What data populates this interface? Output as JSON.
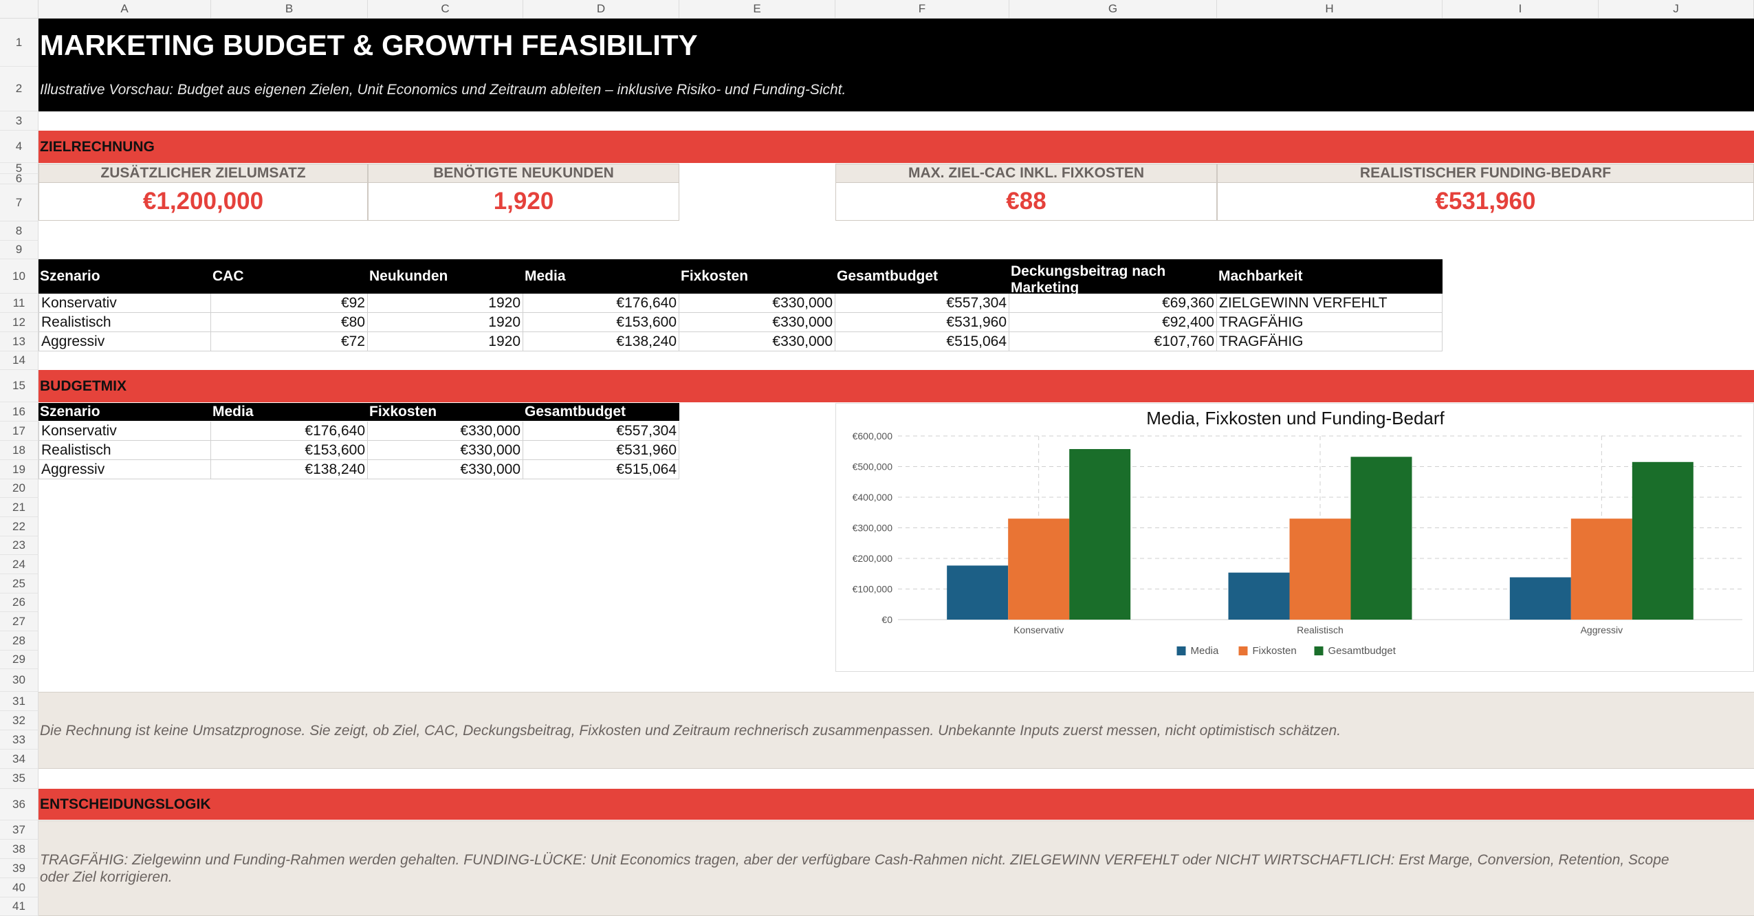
{
  "columns": [
    "A",
    "B",
    "C",
    "D",
    "E",
    "F",
    "G",
    "H",
    "I",
    "J"
  ],
  "rows": [
    "1",
    "2",
    "3",
    "4",
    "5",
    "6",
    "7",
    "8",
    "9",
    "10",
    "11",
    "12",
    "13",
    "14",
    "15",
    "16",
    "17",
    "18",
    "19",
    "20",
    "21",
    "22",
    "23",
    "24",
    "25",
    "26",
    "27",
    "28",
    "29",
    "30",
    "31",
    "32",
    "33",
    "34",
    "35",
    "36",
    "37",
    "38",
    "39",
    "40",
    "41"
  ],
  "header": {
    "title": "MARKETING BUDGET & GROWTH FEASIBILITY",
    "subtitle": "Illustrative Vorschau: Budget aus eigenen Zielen, Unit Economics und Zeitraum ableiten – inklusive Risiko- und Funding-Sicht."
  },
  "sections": {
    "zielrechnung": "ZIELRECHNUNG",
    "budgetmix": "BUDGETMIX",
    "entscheidungslogik": "ENTSCHEIDUNGSLOGIK"
  },
  "kpis": [
    {
      "label": "ZUSÄTZLICHER ZIELUMSATZ",
      "value": "€1,200,000"
    },
    {
      "label": "BENÖTIGTE NEUKUNDEN",
      "value": "1,920"
    },
    {
      "label": "MAX. ZIEL-CAC INKL. FIXKOSTEN",
      "value": "€88"
    },
    {
      "label": "REALISTISCHER FUNDING-BEDARF",
      "value": "€531,960"
    }
  ],
  "scenario_table": {
    "headers": [
      "Szenario",
      "CAC",
      "Neukunden",
      "Media",
      "Fixkosten",
      "Gesamtbudget",
      "Deckungsbeitrag nach Marketing",
      "Machbarkeit"
    ],
    "rows": [
      [
        "Konservativ",
        "€92",
        "1920",
        "€176,640",
        "€330,000",
        "€557,304",
        "€69,360",
        "ZIELGEWINN VERFEHLT"
      ],
      [
        "Realistisch",
        "€80",
        "1920",
        "€153,600",
        "€330,000",
        "€531,960",
        "€92,400",
        "TRAGFÄHIG"
      ],
      [
        "Aggressiv",
        "€72",
        "1920",
        "€138,240",
        "€330,000",
        "€515,064",
        "€107,760",
        "TRAGFÄHIG"
      ]
    ]
  },
  "budget_table": {
    "headers": [
      "Szenario",
      "Media",
      "Fixkosten",
      "Gesamtbudget"
    ],
    "rows": [
      [
        "Konservativ",
        "€176,640",
        "€330,000",
        "€557,304"
      ],
      [
        "Realistisch",
        "€153,600",
        "€330,000",
        "€531,960"
      ],
      [
        "Aggressiv",
        "€138,240",
        "€330,000",
        "€515,064"
      ]
    ]
  },
  "notes": {
    "disclaimer": "Die Rechnung ist keine Umsatzprognose. Sie zeigt, ob Ziel, CAC, Deckungsbeitrag, Fixkosten und Zeitraum rechnerisch zusammenpassen. Unbekannte Inputs zuerst messen, nicht optimistisch schätzen.",
    "decision": "TRAGFÄHIG: Zielgewinn und Funding-Rahmen werden gehalten. FUNDING-LÜCKE: Unit Economics tragen, aber der verfügbare Cash-Rahmen nicht. ZIELGEWINN VERFEHLT oder NICHT WIRTSCHAFTLICH: Erst Marge, Conversion, Retention, Scope oder Ziel korrigieren."
  },
  "colors": {
    "black_band": "#000000",
    "section_red": "#e5433b",
    "kpi_value": "#e5413b",
    "beige": "#ede8e2",
    "media": "#1c5f86",
    "fixkosten": "#e97434",
    "gesamtbudget": "#1a6e2a"
  },
  "chart_data": {
    "type": "bar",
    "title": "Media, Fixkosten und Funding-Bedarf",
    "categories": [
      "Konservativ",
      "Realistisch",
      "Aggressiv"
    ],
    "series": [
      {
        "name": "Media",
        "values": [
          176640,
          153600,
          138240
        ],
        "color": "#1c5f86"
      },
      {
        "name": "Fixkosten",
        "values": [
          330000,
          330000,
          330000
        ],
        "color": "#e97434"
      },
      {
        "name": "Gesamtbudget",
        "values": [
          557304,
          531960,
          515064
        ],
        "color": "#1a6e2a"
      }
    ],
    "ylim": [
      0,
      600000
    ],
    "yticks": [
      "€0",
      "€100,000",
      "€200,000",
      "€300,000",
      "€400,000",
      "€500,000",
      "€600,000"
    ],
    "grid": true,
    "legend": "bottom"
  }
}
